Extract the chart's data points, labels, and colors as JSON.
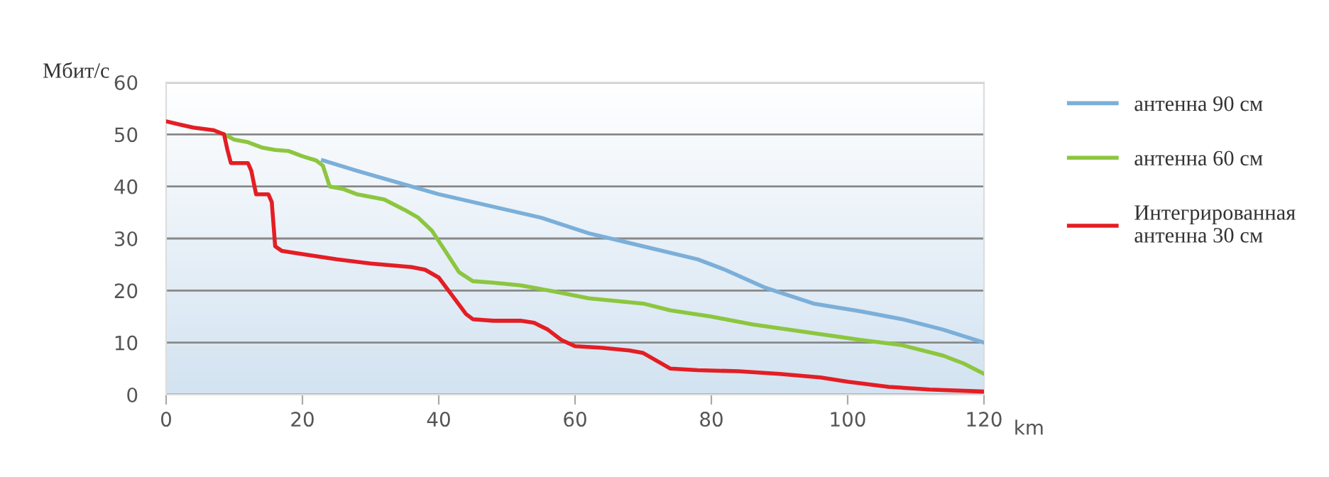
{
  "chart_data": {
    "type": "line",
    "ylabel": "Мбит/с",
    "xlabel": "km",
    "xlim": [
      0,
      120
    ],
    "xticks": [
      0,
      20,
      40,
      60,
      80,
      100,
      120
    ],
    "ylim": [
      0,
      60
    ],
    "yticks": [
      0,
      10,
      20,
      30,
      40,
      50,
      60
    ],
    "grid": "y",
    "legend": "right",
    "marker": "none",
    "line_style": "solid",
    "series": [
      {
        "name": "антенна 90 см",
        "color": "#7bafd9",
        "x": [
          23,
          28,
          40,
          50,
          55,
          62,
          70,
          78,
          82,
          88,
          95,
          102,
          108,
          114,
          120
        ],
        "values": [
          45,
          43,
          38.5,
          35.5,
          34,
          31,
          28.5,
          26,
          24,
          20.5,
          17.5,
          16,
          14.5,
          12.5,
          10
        ]
      },
      {
        "name": "антенна 60 см",
        "color": "#8cc63f",
        "x": [
          8.5,
          10,
          12,
          14,
          16,
          18,
          20,
          22,
          23,
          23.5,
          24,
          26,
          28,
          32,
          35,
          37,
          39,
          41,
          43,
          45,
          48,
          52,
          57,
          62,
          66,
          70,
          74,
          80,
          86,
          94,
          102,
          108,
          114,
          117,
          120
        ],
        "values": [
          50,
          49,
          48.5,
          47.5,
          47,
          46.8,
          45.8,
          45,
          44,
          42,
          40,
          39.5,
          38.5,
          37.5,
          35.5,
          34,
          31.5,
          27.5,
          23.5,
          21.8,
          21.5,
          21,
          19.8,
          18.5,
          18,
          17.5,
          16.2,
          15,
          13.5,
          12,
          10.5,
          9.5,
          7.5,
          6,
          4
        ]
      },
      {
        "name": "Интегрированная\nантенна 30 см",
        "color": "#e31e24",
        "x": [
          0,
          4,
          7,
          8.5,
          9,
          9.5,
          12,
          12.5,
          13.2,
          15,
          15.5,
          16,
          17,
          20,
          25,
          30,
          36,
          38,
          40,
          42,
          44,
          45,
          48,
          52,
          54,
          56,
          58,
          60,
          64,
          68,
          70,
          72,
          74,
          78,
          84,
          90,
          96,
          100,
          106,
          112,
          120
        ],
        "values": [
          52.5,
          51.3,
          50.8,
          50,
          47,
          44.5,
          44.5,
          43,
          38.5,
          38.5,
          37,
          28.5,
          27.6,
          27,
          26,
          25.2,
          24.5,
          24,
          22.5,
          19,
          15.5,
          14.5,
          14.2,
          14.2,
          13.8,
          12.5,
          10.5,
          9.3,
          9,
          8.5,
          8,
          6.5,
          5,
          4.7,
          4.5,
          4,
          3.3,
          2.5,
          1.5,
          1,
          0.6
        ]
      }
    ]
  }
}
